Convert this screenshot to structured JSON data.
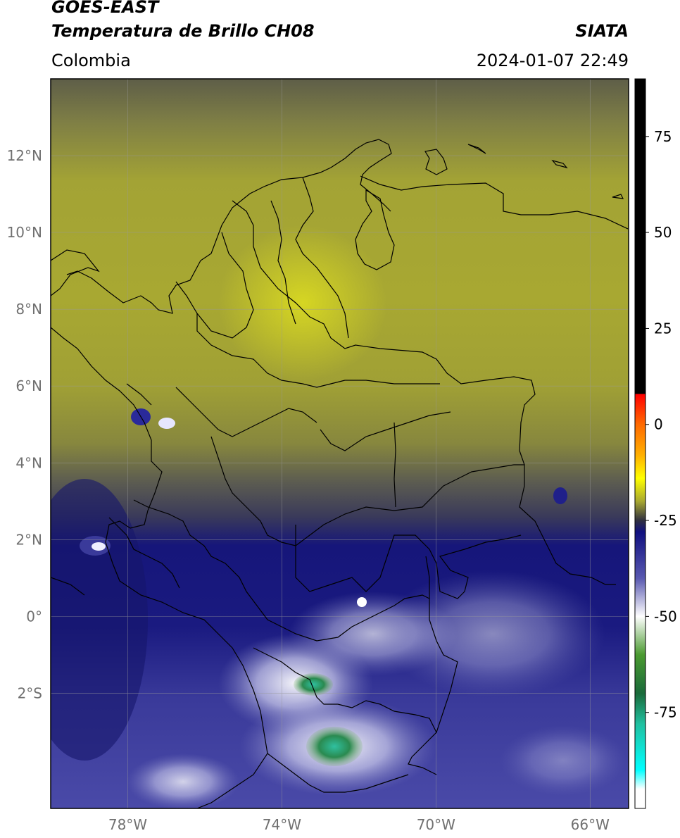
{
  "header": {
    "title_line1": "GOES-EAST",
    "title_line2": "Temperatura de Brillo CH08",
    "region": "Colombia",
    "org": "SIATA",
    "datetime": "2024-01-07 22:49"
  },
  "map": {
    "lon_range": [
      -80,
      -65
    ],
    "lat_range": [
      -5,
      14
    ],
    "lat_ticks": [
      {
        "value": 12,
        "label": "12°N"
      },
      {
        "value": 10,
        "label": "10°N"
      },
      {
        "value": 8,
        "label": "8°N"
      },
      {
        "value": 6,
        "label": "6°N"
      },
      {
        "value": 4,
        "label": "4°N"
      },
      {
        "value": 2,
        "label": "2°N"
      },
      {
        "value": 0,
        "label": "0°"
      },
      {
        "value": -2,
        "label": "2°S"
      }
    ],
    "lon_ticks": [
      {
        "value": -78,
        "label": "78°W"
      },
      {
        "value": -74,
        "label": "74°W"
      },
      {
        "value": -70,
        "label": "70°W"
      },
      {
        "value": -66,
        "label": "66°W"
      }
    ]
  },
  "colorbar": {
    "range": [
      -100,
      90
    ],
    "ticks": [
      {
        "value": 75,
        "label": "75"
      },
      {
        "value": 50,
        "label": "50"
      },
      {
        "value": 25,
        "label": "25"
      },
      {
        "value": 0,
        "label": "0"
      },
      {
        "value": -25,
        "label": "-25"
      },
      {
        "value": -50,
        "label": "-50"
      },
      {
        "value": -75,
        "label": "-75"
      }
    ],
    "stops": [
      {
        "value": 90,
        "color": "#000000"
      },
      {
        "value": 8,
        "color": "#000000"
      },
      {
        "value": 7.9,
        "color": "#ff0000"
      },
      {
        "value": 0,
        "color": "#ff6a00"
      },
      {
        "value": -8,
        "color": "#ffb000"
      },
      {
        "value": -14,
        "color": "#ffff00"
      },
      {
        "value": -20,
        "color": "#a8a830"
      },
      {
        "value": -25,
        "color": "#303040"
      },
      {
        "value": -28,
        "color": "#101080"
      },
      {
        "value": -40,
        "color": "#5858b0"
      },
      {
        "value": -50,
        "color": "#ffffff"
      },
      {
        "value": -60,
        "color": "#4a9a30"
      },
      {
        "value": -70,
        "color": "#1a6a3a"
      },
      {
        "value": -78,
        "color": "#20c0a0"
      },
      {
        "value": -90,
        "color": "#00ffff"
      },
      {
        "value": -95,
        "color": "#ffffff"
      },
      {
        "value": -100,
        "color": "#ffffff"
      }
    ]
  }
}
